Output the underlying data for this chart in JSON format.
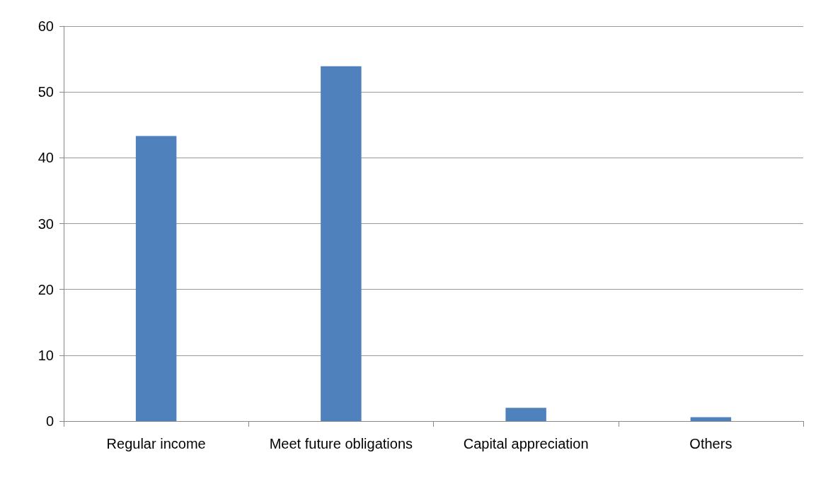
{
  "chart_data": {
    "type": "bar",
    "categories": [
      "Regular income",
      "Meet future obligations",
      "Capital appreciation",
      "Others"
    ],
    "values": [
      43.3,
      53.9,
      2.0,
      0.6
    ],
    "color": "#4f81bd",
    "ylim": [
      0,
      60
    ],
    "yticks": [
      0,
      10,
      20,
      30,
      40,
      50,
      60
    ],
    "grid": "y"
  }
}
